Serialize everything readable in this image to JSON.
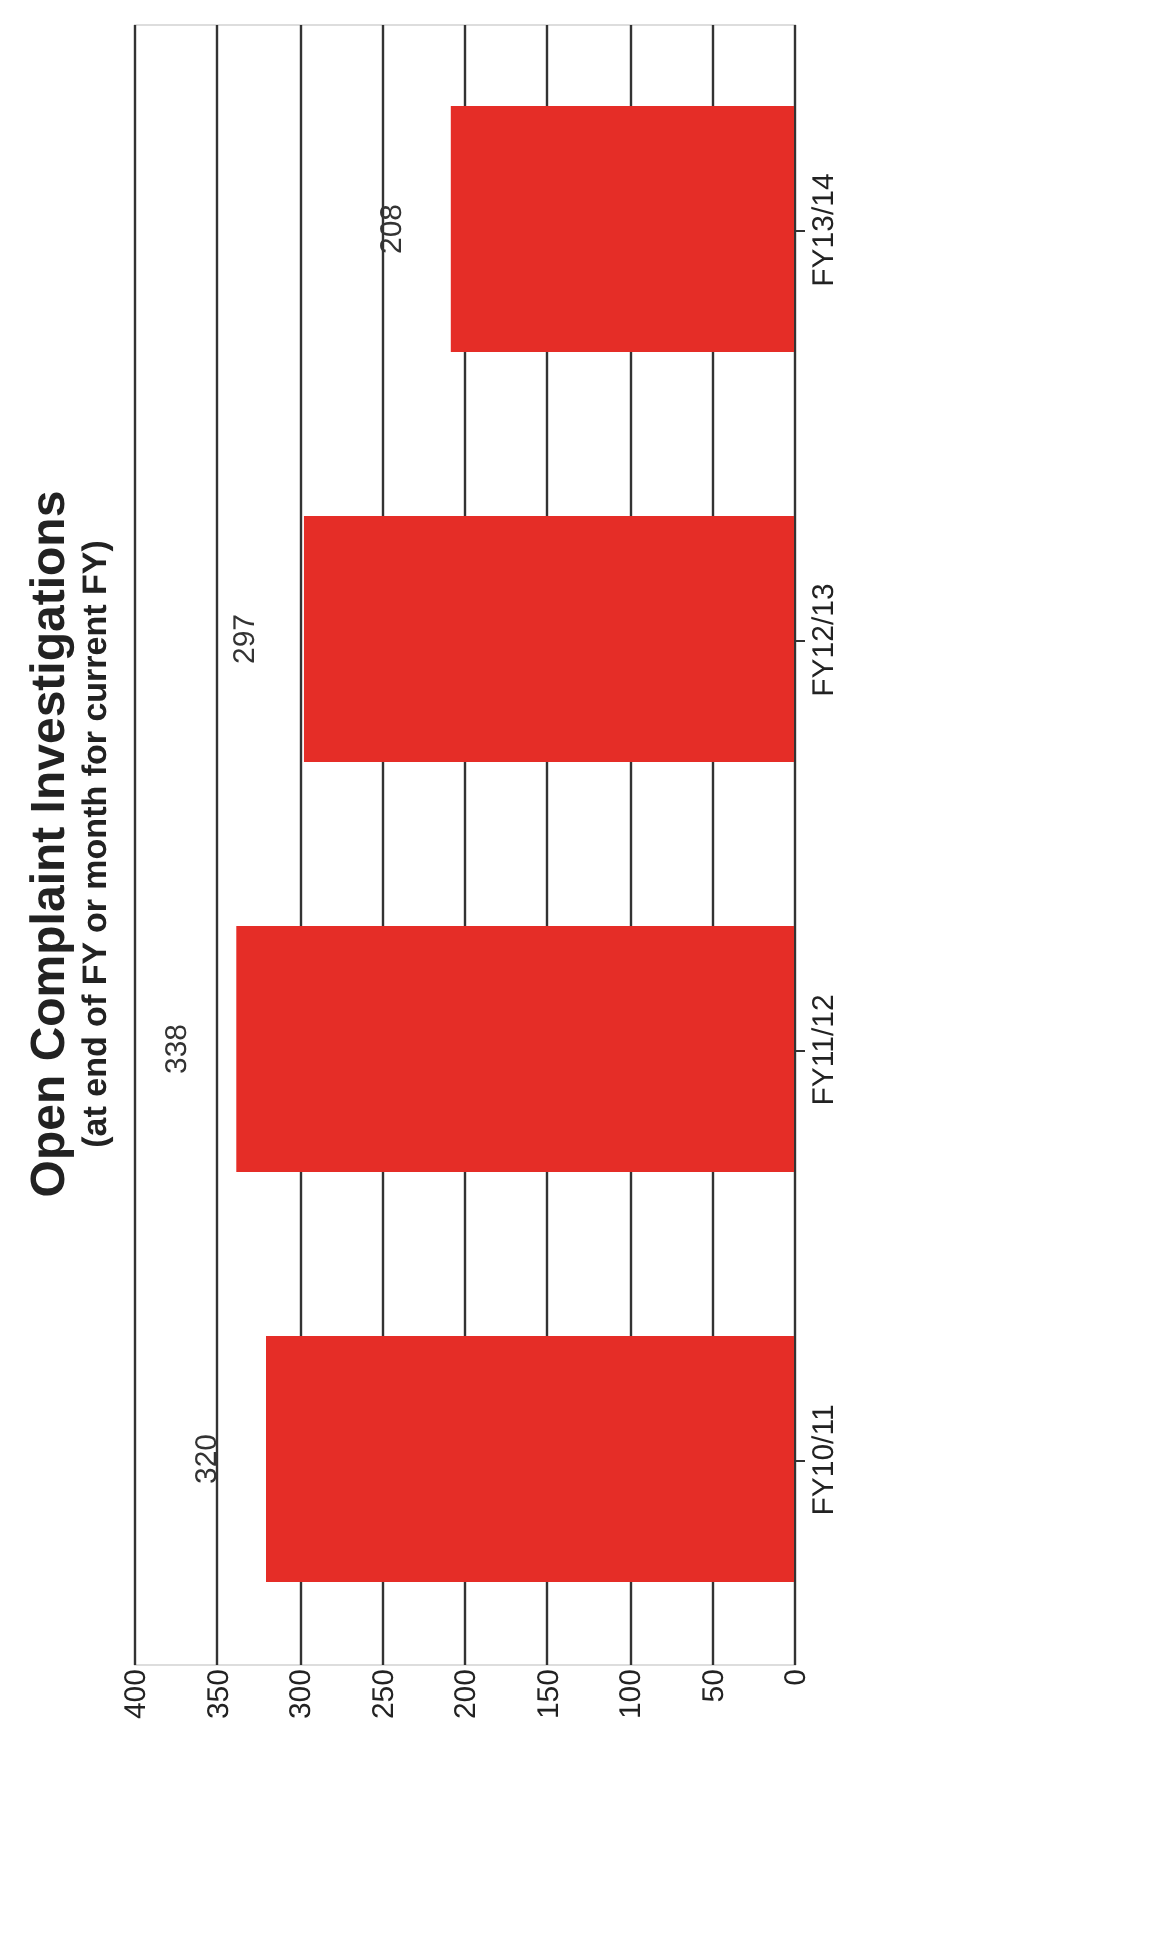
{
  "chart_data": {
    "type": "bar",
    "orientation": "horizontal",
    "title": "Open Complaint Investigations",
    "subtitle": "(at end of FY or month for current FY)",
    "categories": [
      "FY13/14",
      "FY12/13",
      "FY11/12",
      "FY10/11"
    ],
    "values": [
      208,
      297,
      338,
      320
    ],
    "color": "#e52d27",
    "xlim": [
      400,
      0
    ],
    "xticks": [
      0,
      50,
      100,
      150,
      200,
      250,
      300,
      350,
      400
    ],
    "grid": "x",
    "data_labels": true
  }
}
